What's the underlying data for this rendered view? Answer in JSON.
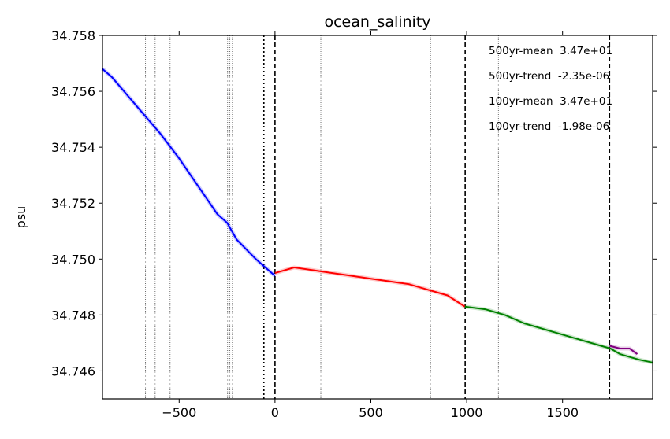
{
  "chart_data": {
    "type": "line",
    "title": "ocean_salinity",
    "xlabel": "",
    "ylabel": "psu",
    "xlim": [
      -900,
      1970
    ],
    "ylim": [
      34.745,
      34.758
    ],
    "xticks": [
      -500,
      0,
      500,
      1000,
      1500
    ],
    "xtick_labels": [
      "−500",
      "0",
      "500",
      "1000",
      "1500"
    ],
    "yticks": [
      34.746,
      34.748,
      34.75,
      34.752,
      34.754,
      34.756,
      34.758
    ],
    "ytick_labels": [
      "34.746",
      "34.748",
      "34.750",
      "34.752",
      "34.754",
      "34.756",
      "34.758"
    ],
    "grid": false,
    "series": [
      {
        "name": "blue",
        "color": "#0000ff",
        "x": [
          -900,
          -850,
          -800,
          -700,
          -600,
          -500,
          -400,
          -300,
          -250,
          -200,
          -100,
          -50,
          0
        ],
        "y": [
          34.7568,
          34.7565,
          34.7561,
          34.7553,
          34.7545,
          34.7536,
          34.7526,
          34.7516,
          34.7513,
          34.7507,
          34.75,
          34.7497,
          34.7494
        ]
      },
      {
        "name": "red",
        "color": "#ff0000",
        "x": [
          0,
          100,
          200,
          300,
          400,
          500,
          600,
          700,
          800,
          900,
          990
        ],
        "y": [
          34.7495,
          34.7497,
          34.7496,
          34.7495,
          34.7494,
          34.7493,
          34.7492,
          34.7491,
          34.7489,
          34.7487,
          34.7483
        ]
      },
      {
        "name": "green",
        "color": "#008000",
        "x": [
          990,
          1100,
          1200,
          1300,
          1400,
          1500,
          1600,
          1700,
          1750,
          1800,
          1850,
          1900,
          1970
        ],
        "y": [
          34.7483,
          34.7482,
          34.748,
          34.7477,
          34.7475,
          34.7473,
          34.7471,
          34.7469,
          34.7468,
          34.7466,
          34.7465,
          34.7464,
          34.7463
        ]
      },
      {
        "name": "purple",
        "color": "#800080",
        "x": [
          1745,
          1800,
          1850,
          1870,
          1890
        ],
        "y": [
          34.7469,
          34.7468,
          34.7468,
          34.7467,
          34.7466
        ]
      }
    ],
    "vlines": [
      {
        "x": -675,
        "style": "thin-dotted"
      },
      {
        "x": -625,
        "style": "thin-dotted"
      },
      {
        "x": -547,
        "style": "thin-dotted"
      },
      {
        "x": -247,
        "style": "thin-dotted"
      },
      {
        "x": -235,
        "style": "thin-dotted"
      },
      {
        "x": -222,
        "style": "thin-dotted"
      },
      {
        "x": 239,
        "style": "thin-dotted"
      },
      {
        "x": 811,
        "style": "thin-dotted"
      },
      {
        "x": 1165,
        "style": "thin-dotted"
      },
      {
        "x": -58,
        "style": "dotted"
      },
      {
        "x": 0,
        "style": "dashed"
      },
      {
        "x": 992,
        "style": "dashed"
      },
      {
        "x": 1745,
        "style": "dashed"
      }
    ],
    "annotations": [
      "500yr-mean  3.47e+01",
      "500yr-trend  -2.35e-06",
      "100yr-mean  3.47e+01",
      "100yr-trend  -1.98e-06"
    ]
  }
}
